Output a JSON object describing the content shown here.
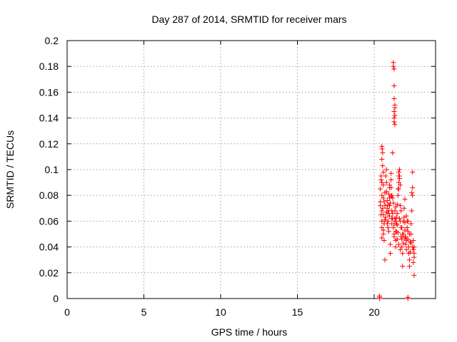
{
  "chart_data": {
    "type": "scatter",
    "title": "Day 287 of 2014, SRMTID for receiver mars",
    "xlabel": "GPS time / hours",
    "ylabel": "SRMTID / TECUs",
    "xlim": [
      0,
      24
    ],
    "ylim": [
      0,
      0.2
    ],
    "xticks": [
      0,
      5,
      10,
      15,
      20
    ],
    "xtick_labels": [
      "0",
      "5",
      "10",
      "15",
      "20"
    ],
    "yticks": [
      0,
      0.02,
      0.04,
      0.06,
      0.08,
      0.1,
      0.12,
      0.14,
      0.16,
      0.18,
      0.2
    ],
    "ytick_labels": [
      "0",
      "0.02",
      "0.04",
      "0.06",
      "0.08",
      "0.1",
      "0.12",
      "0.14",
      "0.16",
      "0.18",
      "0.2"
    ],
    "grid": true,
    "marker": "plus",
    "color": "#ff0000",
    "series": [
      {
        "name": "SRMTID",
        "points": [
          [
            20.35,
            0.0
          ],
          [
            20.35,
            0.001
          ],
          [
            20.35,
            0.002
          ],
          [
            22.2,
            0.0
          ],
          [
            22.2,
            0.001
          ],
          [
            20.4,
            0.072
          ],
          [
            20.4,
            0.075
          ],
          [
            20.4,
            0.085
          ],
          [
            20.45,
            0.095
          ],
          [
            20.45,
            0.092
          ],
          [
            20.5,
            0.09
          ],
          [
            20.5,
            0.08
          ],
          [
            20.5,
            0.068
          ],
          [
            20.5,
            0.06
          ],
          [
            20.5,
            0.055
          ],
          [
            20.5,
            0.118
          ],
          [
            20.52,
            0.116
          ],
          [
            20.55,
            0.113
          ],
          [
            20.5,
            0.108
          ],
          [
            20.55,
            0.103
          ],
          [
            20.6,
            0.098
          ],
          [
            20.6,
            0.088
          ],
          [
            20.6,
            0.078
          ],
          [
            20.6,
            0.065
          ],
          [
            20.6,
            0.05
          ],
          [
            20.65,
            0.045
          ],
          [
            20.65,
            0.058
          ],
          [
            20.7,
            0.072
          ],
          [
            20.7,
            0.082
          ],
          [
            20.7,
            0.03
          ],
          [
            20.75,
            0.095
          ],
          [
            20.8,
            0.1
          ],
          [
            20.8,
            0.09
          ],
          [
            20.8,
            0.083
          ],
          [
            20.85,
            0.076
          ],
          [
            20.85,
            0.07
          ],
          [
            20.9,
            0.066
          ],
          [
            20.9,
            0.06
          ],
          [
            20.9,
            0.055
          ],
          [
            20.95,
            0.052
          ],
          [
            20.95,
            0.081
          ],
          [
            21.0,
            0.088
          ],
          [
            21.0,
            0.078
          ],
          [
            21.0,
            0.072
          ],
          [
            21.0,
            0.064
          ],
          [
            21.05,
            0.035
          ],
          [
            21.05,
            0.042
          ],
          [
            21.1,
            0.097
          ],
          [
            21.1,
            0.092
          ],
          [
            21.1,
            0.086
          ],
          [
            21.15,
            0.068
          ],
          [
            21.15,
            0.062
          ],
          [
            21.15,
            0.058
          ],
          [
            21.2,
            0.113
          ],
          [
            21.2,
            0.078
          ],
          [
            21.25,
            0.074
          ],
          [
            21.25,
            0.055
          ],
          [
            21.3,
            0.048
          ],
          [
            21.3,
            0.05
          ],
          [
            21.35,
            0.068
          ],
          [
            21.35,
            0.062
          ],
          [
            21.4,
            0.06
          ],
          [
            21.4,
            0.045
          ],
          [
            21.4,
            0.04
          ],
          [
            21.45,
            0.058
          ],
          [
            21.45,
            0.052
          ],
          [
            21.5,
            0.066
          ],
          [
            21.5,
            0.073
          ],
          [
            21.55,
            0.08
          ],
          [
            21.55,
            0.085
          ],
          [
            21.6,
            0.09
          ],
          [
            21.6,
            0.095
          ],
          [
            21.65,
            0.1
          ],
          [
            21.65,
            0.093
          ],
          [
            21.7,
            0.088
          ],
          [
            21.7,
            0.072
          ],
          [
            21.7,
            0.06
          ],
          [
            21.75,
            0.055
          ],
          [
            21.75,
            0.048
          ],
          [
            21.8,
            0.046
          ],
          [
            21.8,
            0.04
          ],
          [
            21.85,
            0.025
          ],
          [
            21.85,
            0.035
          ],
          [
            21.9,
            0.043
          ],
          [
            21.9,
            0.05
          ],
          [
            21.95,
            0.063
          ],
          [
            21.95,
            0.07
          ],
          [
            22.0,
            0.077
          ],
          [
            22.0,
            0.053
          ],
          [
            22.05,
            0.048
          ],
          [
            22.05,
            0.042
          ],
          [
            22.1,
            0.038
          ],
          [
            22.1,
            0.045
          ],
          [
            22.15,
            0.055
          ],
          [
            22.15,
            0.06
          ],
          [
            22.2,
            0.052
          ],
          [
            22.2,
            0.046
          ],
          [
            22.25,
            0.04
          ],
          [
            22.25,
            0.035
          ],
          [
            22.3,
            0.03
          ],
          [
            22.3,
            0.025
          ],
          [
            22.35,
            0.036
          ],
          [
            22.35,
            0.044
          ],
          [
            22.4,
            0.05
          ],
          [
            22.4,
            0.058
          ],
          [
            22.45,
            0.068
          ],
          [
            22.45,
            0.082
          ],
          [
            22.5,
            0.086
          ],
          [
            22.5,
            0.08
          ],
          [
            22.5,
            0.098
          ],
          [
            22.55,
            0.045
          ],
          [
            22.55,
            0.038
          ],
          [
            22.6,
            0.035
          ],
          [
            22.6,
            0.018
          ],
          [
            22.6,
            0.04
          ],
          [
            21.25,
            0.183
          ],
          [
            21.25,
            0.18
          ],
          [
            21.3,
            0.178
          ],
          [
            21.3,
            0.165
          ],
          [
            21.3,
            0.155
          ],
          [
            21.35,
            0.15
          ],
          [
            21.35,
            0.148
          ],
          [
            21.3,
            0.145
          ],
          [
            21.35,
            0.142
          ],
          [
            21.3,
            0.14
          ],
          [
            21.3,
            0.137
          ],
          [
            21.35,
            0.135
          ],
          [
            21.6,
            0.098
          ],
          [
            21.65,
            0.095
          ],
          [
            21.6,
            0.085
          ],
          [
            20.45,
            0.065
          ],
          [
            20.55,
            0.07
          ],
          [
            20.65,
            0.075
          ],
          [
            20.75,
            0.063
          ],
          [
            20.85,
            0.058
          ],
          [
            20.95,
            0.068
          ],
          [
            21.05,
            0.074
          ],
          [
            21.15,
            0.08
          ],
          [
            21.2,
            0.066
          ],
          [
            21.4,
            0.071
          ],
          [
            21.45,
            0.063
          ],
          [
            21.5,
            0.057
          ],
          [
            21.55,
            0.051
          ],
          [
            21.65,
            0.062
          ],
          [
            21.75,
            0.068
          ],
          [
            21.85,
            0.05
          ],
          [
            22.0,
            0.059
          ],
          [
            22.1,
            0.064
          ],
          [
            22.2,
            0.06
          ],
          [
            22.3,
            0.05
          ],
          [
            22.4,
            0.043
          ],
          [
            22.5,
            0.04
          ],
          [
            22.55,
            0.028
          ],
          [
            22.6,
            0.032
          ],
          [
            20.5,
            0.047
          ],
          [
            20.6,
            0.053
          ],
          [
            20.7,
            0.061
          ],
          [
            20.8,
            0.067
          ],
          [
            20.9,
            0.073
          ],
          [
            21.0,
            0.086
          ],
          [
            21.1,
            0.079
          ],
          [
            21.2,
            0.062
          ],
          [
            21.3,
            0.058
          ],
          [
            21.4,
            0.052
          ],
          [
            21.5,
            0.046
          ],
          [
            21.6,
            0.042
          ],
          [
            21.7,
            0.038
          ],
          [
            21.8,
            0.055
          ],
          [
            21.9,
            0.06
          ],
          [
            22.0,
            0.047
          ]
        ]
      }
    ]
  }
}
